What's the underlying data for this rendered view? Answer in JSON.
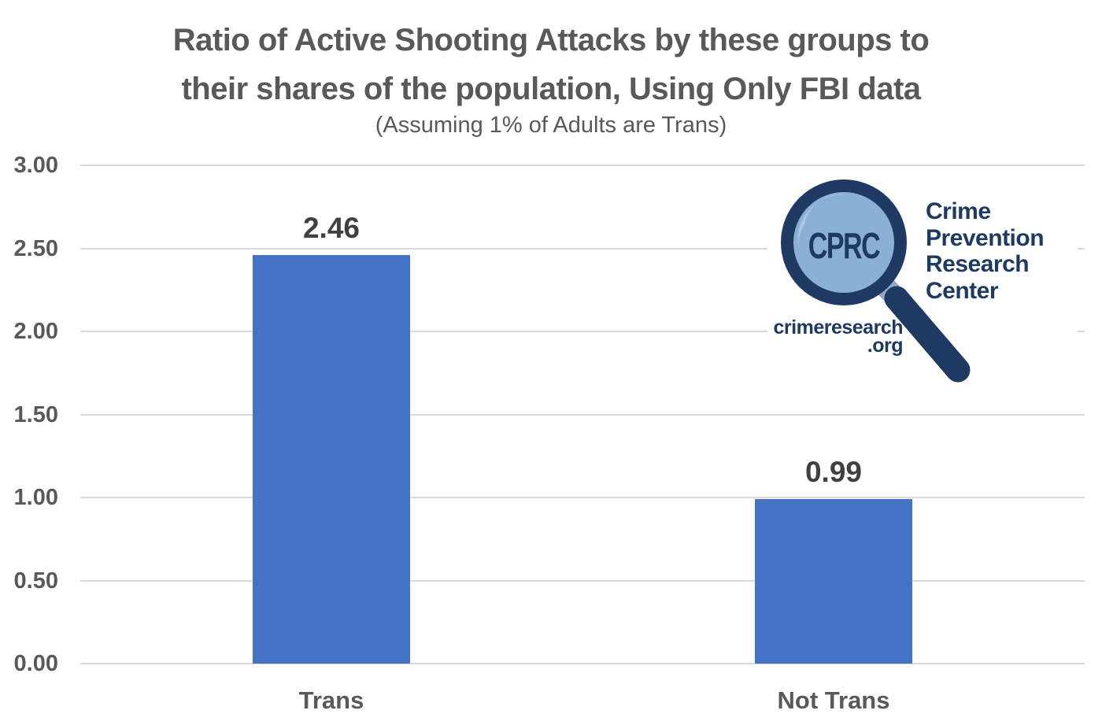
{
  "title": {
    "line1": "Ratio of Active Shooting Attacks by these groups to",
    "line2": "their shares of the population, Using Only FBI data"
  },
  "subtitle": "(Assuming 1% of Adults are Trans)",
  "chart_data": {
    "type": "bar",
    "title": "Ratio of Active Shooting Attacks by these groups to their shares of the population, Using Only FBI data",
    "subtitle": "(Assuming 1% of Adults are Trans)",
    "categories": [
      "Trans",
      "Not Trans"
    ],
    "values": [
      2.46,
      0.99
    ],
    "data_labels": [
      "2.46",
      "0.99"
    ],
    "ylim": [
      0,
      3
    ],
    "ytick_values": [
      0,
      0.5,
      1,
      1.5,
      2,
      2.5,
      3
    ],
    "ytick_labels": [
      "0.00",
      "0.50",
      "1.00",
      "1.50",
      "2.00",
      "2.50",
      "3.00"
    ],
    "grid": true,
    "legend": "none",
    "bar_color": "#4472C4",
    "gridline_color": "#D9D9D9",
    "axis_label_color": "#595959",
    "value_label_color": "#404040"
  },
  "logo": {
    "acronym": "CPRC",
    "name_lines": [
      "Crime",
      "Prevention",
      "Research",
      "Center"
    ],
    "website_line1": "crimeresearch",
    "website_line2": ".org",
    "navy": "#1E3A63",
    "lens_blue": "#8AB0D3",
    "lens_highlight": "#ABC8E2",
    "collar_blue": "#93A9C2"
  }
}
